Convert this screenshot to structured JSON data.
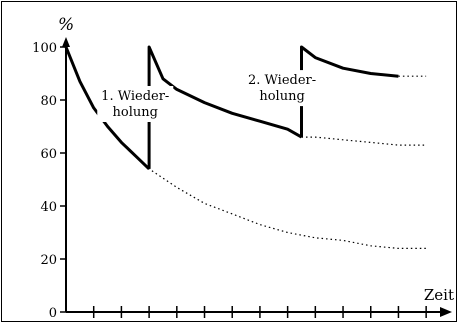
{
  "chart_data": {
    "type": "line",
    "title": "",
    "ylabel": "%",
    "xlabel": "Zeit",
    "ylim": [
      0,
      100
    ],
    "xlim": [
      0,
      13.5
    ],
    "yticks": [
      0,
      20,
      40,
      60,
      80,
      100
    ],
    "ytick_labels": [
      "0",
      "20",
      "40",
      "60",
      "80",
      "100"
    ],
    "x_tick_count": 13,
    "grid": false,
    "annotations": [
      {
        "lines": [
          "1. Wieder-",
          "holung"
        ],
        "x": 2.5,
        "y": 80
      },
      {
        "lines": [
          "2. Wieder-",
          "holung"
        ],
        "x": 7.8,
        "y": 86
      }
    ],
    "series": [
      {
        "style": "dotted",
        "x": [
          0,
          0.5,
          1,
          1.5,
          2,
          2.5,
          3,
          4,
          5,
          6,
          7,
          8,
          9,
          10,
          11,
          12,
          13
        ],
        "y": [
          100,
          87,
          77,
          70,
          64,
          59,
          54,
          47,
          41,
          37,
          33,
          30,
          28,
          27,
          25,
          24,
          24
        ]
      },
      {
        "style": "solid",
        "x": [
          0,
          0.5,
          1,
          1.5,
          2,
          2.5,
          3
        ],
        "y": [
          100,
          87,
          77,
          70,
          64,
          59,
          54
        ]
      },
      {
        "style": "solid",
        "x": [
          3,
          3,
          3.5,
          4,
          5,
          6,
          7,
          8,
          8.5
        ],
        "y": [
          54,
          100,
          88,
          84,
          79,
          75,
          72,
          69,
          66
        ]
      },
      {
        "style": "dotted",
        "x": [
          8.5,
          9,
          10,
          11,
          12,
          13
        ],
        "y": [
          66,
          66,
          65,
          64,
          63,
          63
        ]
      },
      {
        "style": "solid",
        "x": [
          8.5,
          8.5,
          9,
          10,
          11,
          12
        ],
        "y": [
          66,
          100,
          96,
          92,
          90,
          89
        ]
      },
      {
        "style": "dotted",
        "x": [
          12,
          13
        ],
        "y": [
          89,
          89
        ]
      }
    ]
  }
}
